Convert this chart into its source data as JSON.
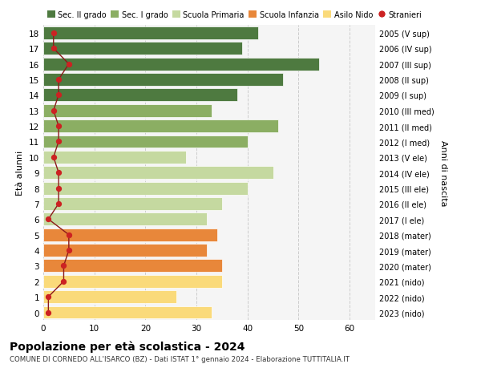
{
  "ages": [
    0,
    1,
    2,
    3,
    4,
    5,
    6,
    7,
    8,
    9,
    10,
    11,
    12,
    13,
    14,
    15,
    16,
    17,
    18
  ],
  "bar_values": [
    33,
    26,
    35,
    35,
    32,
    34,
    32,
    35,
    40,
    45,
    28,
    40,
    46,
    33,
    38,
    47,
    54,
    39,
    42
  ],
  "bar_colors": [
    "#FADA7A",
    "#FADA7A",
    "#FADA7A",
    "#E8873A",
    "#E8873A",
    "#E8873A",
    "#C5D9A0",
    "#C5D9A0",
    "#C5D9A0",
    "#C5D9A0",
    "#C5D9A0",
    "#8BAE63",
    "#8BAE63",
    "#8BAE63",
    "#4E7A40",
    "#4E7A40",
    "#4E7A40",
    "#4E7A40",
    "#4E7A40"
  ],
  "stranieri_values": [
    1,
    1,
    4,
    4,
    5,
    5,
    1,
    3,
    3,
    3,
    2,
    3,
    3,
    2,
    3,
    3,
    5,
    2,
    2
  ],
  "right_labels": [
    "2023 (nido)",
    "2022 (nido)",
    "2021 (nido)",
    "2020 (mater)",
    "2019 (mater)",
    "2018 (mater)",
    "2017 (I ele)",
    "2016 (II ele)",
    "2015 (III ele)",
    "2014 (IV ele)",
    "2013 (V ele)",
    "2012 (I med)",
    "2011 (II med)",
    "2010 (III med)",
    "2009 (I sup)",
    "2008 (II sup)",
    "2007 (III sup)",
    "2006 (IV sup)",
    "2005 (V sup)"
  ],
  "legend_labels": [
    "Sec. II grado",
    "Sec. I grado",
    "Scuola Primaria",
    "Scuola Infanzia",
    "Asilo Nido",
    "Stranieri"
  ],
  "legend_colors": [
    "#4E7A40",
    "#8BAE63",
    "#C5D9A0",
    "#E8873A",
    "#FADA7A",
    "#CC2222"
  ],
  "ylabel_left": "Età alunni",
  "ylabel_right": "Anni di nascita",
  "title": "Popolazione per età scolastica - 2024",
  "subtitle": "COMUNE DI CORNEDO ALL'ISARCO (BZ) - Dati ISTAT 1° gennaio 2024 - Elaborazione TUTTITALIA.IT",
  "xlim": [
    0,
    65
  ],
  "xticks": [
    0,
    10,
    20,
    30,
    40,
    50,
    60
  ],
  "plot_bg": "#F5F5F5",
  "grid_color": "#CCCCCC",
  "stranieri_line_color": "#8B1A1A",
  "stranieri_dot_color": "#CC2222"
}
